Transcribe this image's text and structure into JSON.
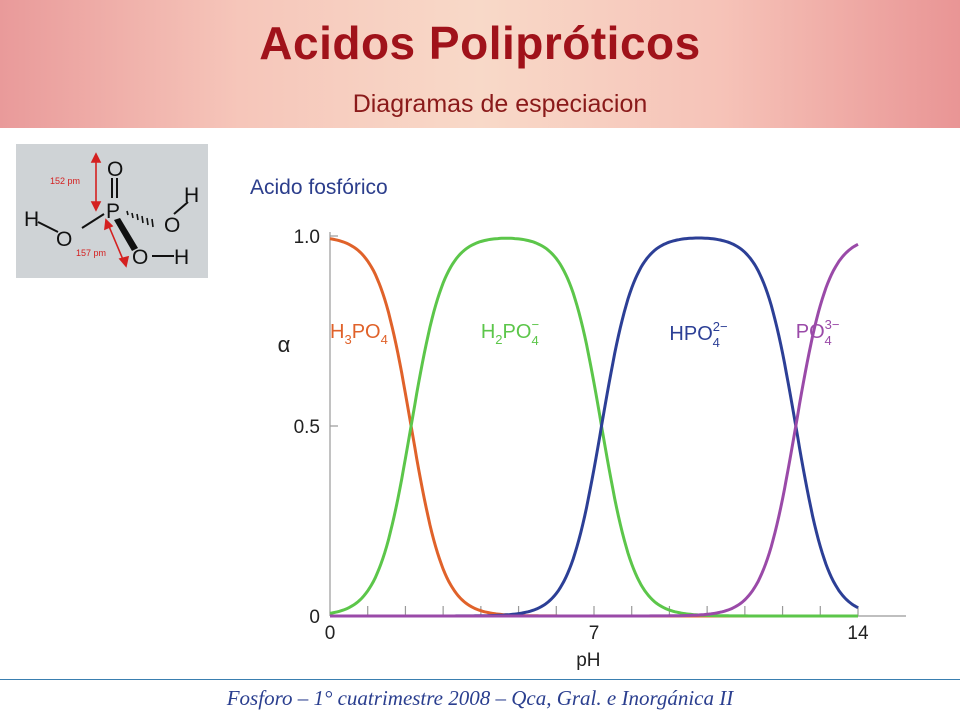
{
  "header": {
    "title": "Acidos Polipróticos",
    "subtitle": "Diagramas de especiacion"
  },
  "molecule": {
    "atoms": [
      "O",
      "P",
      "O",
      "H",
      "H",
      "O",
      "O",
      "H"
    ],
    "bond_labels": [
      "152 pm",
      "157 pm"
    ],
    "colors": {
      "background": "#cfd3d6",
      "arrow": "#d42020"
    }
  },
  "chart_data": {
    "type": "line",
    "title": "Acido fosfórico",
    "xlabel": "pH",
    "ylabel": "α",
    "xlim": [
      0,
      14
    ],
    "ylim": [
      0,
      1
    ],
    "xticks": [
      "0",
      "7",
      "14"
    ],
    "yticks": [
      "0",
      "0.5",
      "1.0"
    ],
    "pKa": [
      2.15,
      7.2,
      12.35
    ],
    "series": [
      {
        "name": "H3PO4",
        "label_main": "H",
        "label_sub1": "3",
        "label_mid": "PO",
        "label_sub2": "4",
        "label_sup": "",
        "color": "#e0622a",
        "crossings": [
          [
            2.15,
            0.5
          ]
        ],
        "maximum": [
          0,
          1.0
        ]
      },
      {
        "name": "H2PO4−",
        "label_main": "H",
        "label_sub1": "2",
        "label_mid": "PO",
        "label_sub2": "4",
        "label_sup": "−",
        "color": "#5cc64a",
        "crossings": [
          [
            2.15,
            0.5
          ],
          [
            7.2,
            0.5
          ]
        ],
        "maximum": [
          4.7,
          1.0
        ]
      },
      {
        "name": "HPO42−",
        "label_main": "",
        "label_sub1": "",
        "label_mid": "HPO",
        "label_sub2": "4",
        "label_sup": "2−",
        "color": "#2c3f96",
        "crossings": [
          [
            7.2,
            0.5
          ],
          [
            12.35,
            0.5
          ]
        ],
        "maximum": [
          9.8,
          1.0
        ]
      },
      {
        "name": "PO43−",
        "label_main": "",
        "label_sub1": "",
        "label_mid": "PO",
        "label_sub2": "4",
        "label_sup": "3−",
        "color": "#9a4aa8",
        "crossings": [
          [
            12.35,
            0.5
          ]
        ],
        "maximum": [
          14,
          0.99
        ]
      }
    ]
  },
  "footer": {
    "text": "Fosforo – 1° cuatrimestre 2008 – Qca, Gral. e Inorgánica II"
  }
}
